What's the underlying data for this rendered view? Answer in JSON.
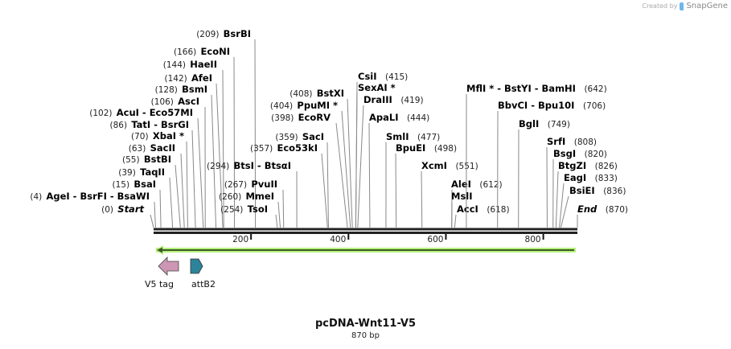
{
  "credit": {
    "prefix": "Created by",
    "brand": "SnapGene"
  },
  "map": {
    "name": "pcDNA-Wnt11-V5",
    "length_label": "870 bp",
    "length_bp": 870,
    "ticks": [
      200,
      400,
      600,
      800
    ],
    "sites": [
      {
        "name": "BsrBI",
        "pos": 209
      },
      {
        "name": "EcoNI",
        "pos": 166
      },
      {
        "name": "HaeII",
        "pos": 144
      },
      {
        "name": "AfeI",
        "pos": 142
      },
      {
        "name": "BsmI",
        "pos": 128
      },
      {
        "name": "AscI",
        "pos": 106
      },
      {
        "name": "AcuI  - Eco57MI",
        "pos": 102
      },
      {
        "name": "TatI  - BsrGI",
        "pos": 86
      },
      {
        "name": "XbaI *",
        "pos": 70
      },
      {
        "name": "SacII",
        "pos": 63
      },
      {
        "name": "BstBI",
        "pos": 55
      },
      {
        "name": "TaqII",
        "pos": 39
      },
      {
        "name": "BsaI",
        "pos": 15
      },
      {
        "name": "AgeI  - BsrFI  - BsaWI",
        "pos": 4
      },
      {
        "name": "Start",
        "pos": 0
      },
      {
        "name": "BtsI  - BtsαI",
        "pos": 294
      },
      {
        "name": "Eco53kI",
        "pos": 357
      },
      {
        "name": "SacI",
        "pos": 359
      },
      {
        "name": "EcoRV",
        "pos": 398
      },
      {
        "name": "PpuMI *",
        "pos": 404
      },
      {
        "name": "BstXI",
        "pos": 408
      },
      {
        "name": "PvuII",
        "pos": 267
      },
      {
        "name": "MmeI",
        "pos": 260
      },
      {
        "name": "TsoI",
        "pos": 254
      },
      {
        "name": "CsiI",
        "pos": 415
      },
      {
        "name": "SexAI *",
        "pos": 415
      },
      {
        "name": "DraIII",
        "pos": 419
      },
      {
        "name": "ApaLI",
        "pos": 444
      },
      {
        "name": "SmlI",
        "pos": 477
      },
      {
        "name": "BpuEI",
        "pos": 498
      },
      {
        "name": "XcmI",
        "pos": 551
      },
      {
        "name": "AleI",
        "pos": 612
      },
      {
        "name": "MslI",
        "pos": 612
      },
      {
        "name": "AccI",
        "pos": 618
      },
      {
        "name": "MflI * - BstYI  - BamHI",
        "pos": 642
      },
      {
        "name": "BbvCI  - Bpu10I",
        "pos": 706
      },
      {
        "name": "BglI",
        "pos": 749
      },
      {
        "name": "SrfI",
        "pos": 808
      },
      {
        "name": "BsgI",
        "pos": 820
      },
      {
        "name": "BtgZI",
        "pos": 826
      },
      {
        "name": "EagI",
        "pos": 833
      },
      {
        "name": "BsiEI",
        "pos": 836
      },
      {
        "name": "End",
        "pos": 870
      }
    ],
    "features": [
      {
        "name": "V5 tag",
        "direction": "reverse",
        "color": "#cc96b4"
      },
      {
        "name": "attB2",
        "direction": "forward",
        "color": "#2d8399"
      }
    ],
    "orf_color": "#b7f07a"
  }
}
